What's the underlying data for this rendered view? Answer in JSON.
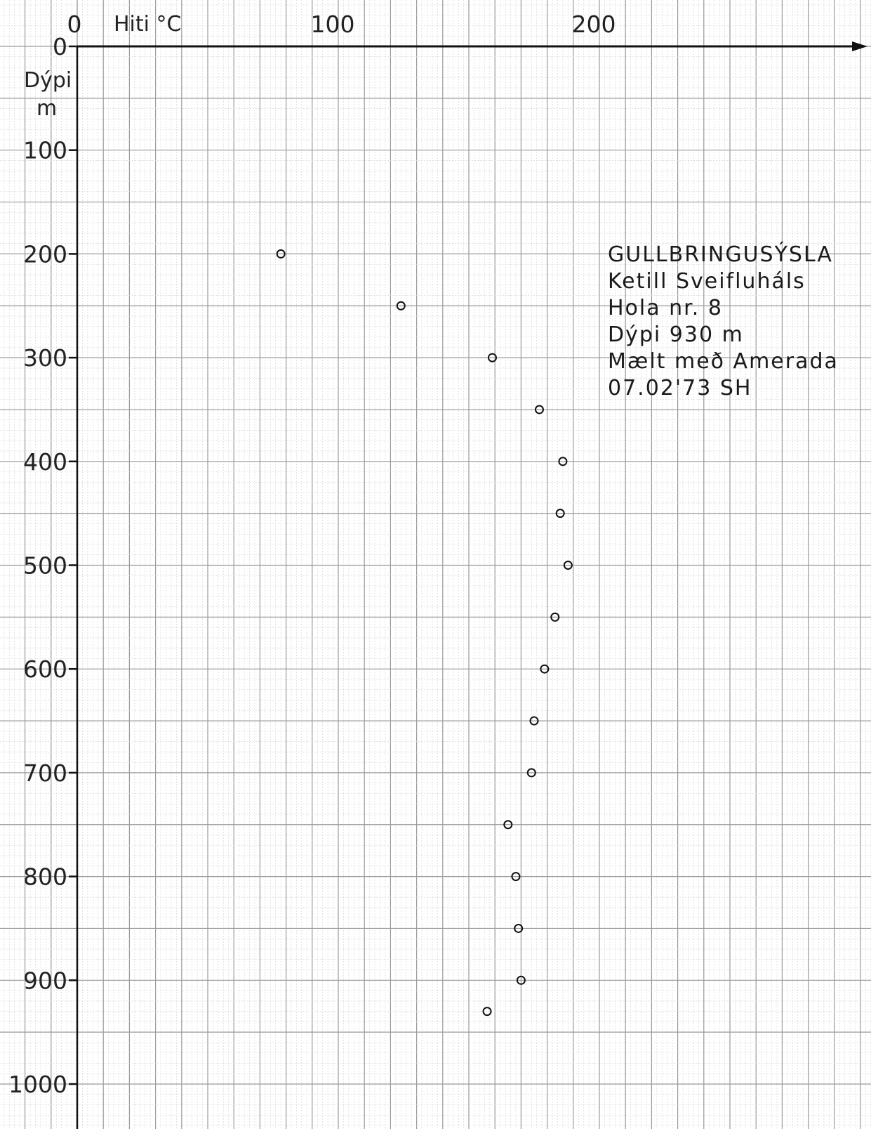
{
  "chart_data": {
    "type": "scatter",
    "xlabel": "Hiti °C",
    "ylabel_line1": "Dýpi",
    "ylabel_line2": "m",
    "x_axis": {
      "position": "top",
      "range": [
        0,
        300
      ],
      "ticks": [
        0,
        100,
        200
      ],
      "tick_labels": [
        "0",
        "100",
        "200"
      ]
    },
    "y_axis": {
      "inverted": true,
      "range": [
        0,
        1000
      ],
      "ticks": [
        0,
        100,
        200,
        300,
        400,
        500,
        600,
        700,
        800,
        900,
        1000
      ],
      "tick_labels": [
        "0",
        "100",
        "200",
        "300",
        "400",
        "500",
        "600",
        "700",
        "800",
        "900",
        "1000"
      ]
    },
    "grid": true,
    "marker": "open-circle",
    "annotation": [
      "GULLBRINGUSÝSLA",
      "Ketill Sveifluháls",
      "Hola nr. 8",
      "Dýpi 930 m",
      "Mælt með Amerada",
      "07.02'73 SH"
    ],
    "points": [
      {
        "x": 78,
        "y": 200
      },
      {
        "x": 124,
        "y": 250
      },
      {
        "x": 159,
        "y": 300
      },
      {
        "x": 177,
        "y": 350
      },
      {
        "x": 186,
        "y": 400
      },
      {
        "x": 185,
        "y": 450
      },
      {
        "x": 188,
        "y": 500
      },
      {
        "x": 183,
        "y": 550
      },
      {
        "x": 179,
        "y": 600
      },
      {
        "x": 175,
        "y": 650
      },
      {
        "x": 174,
        "y": 700
      },
      {
        "x": 165,
        "y": 750
      },
      {
        "x": 168,
        "y": 800
      },
      {
        "x": 169,
        "y": 850
      },
      {
        "x": 170,
        "y": 900
      },
      {
        "x": 157,
        "y": 930
      }
    ]
  }
}
